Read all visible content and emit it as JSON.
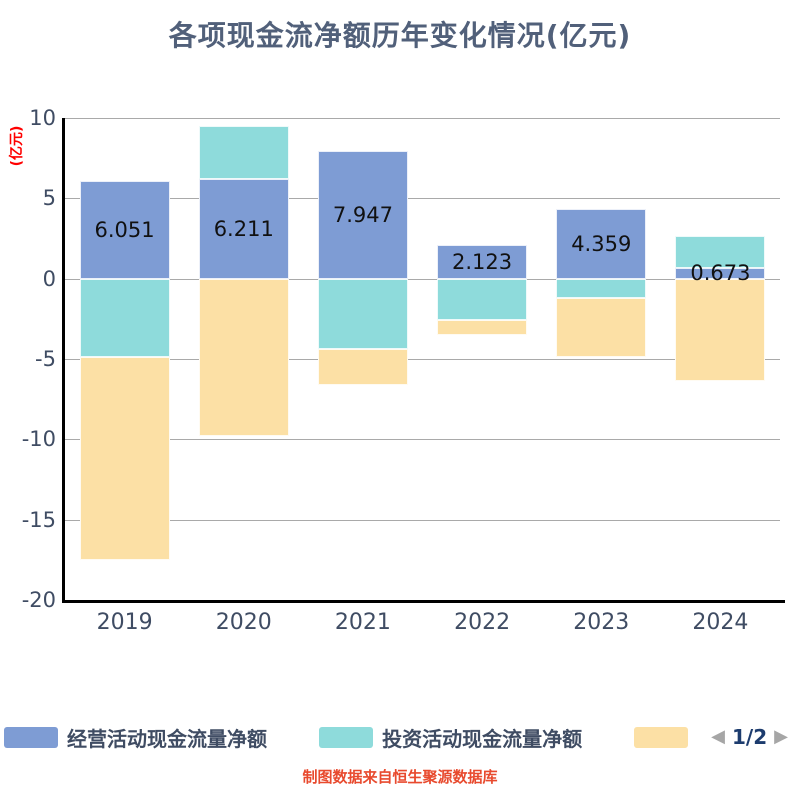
{
  "title": "各项现金流净额历年变化情况(亿元)",
  "y_axis_title": "(亿元)",
  "footer_note": "制图数据来自恒生聚源数据库",
  "legend": {
    "items": [
      {
        "label": "经营活动现金流量净额",
        "color": "#7E9CD4"
      },
      {
        "label": "投资活动现金流量净额",
        "color": "#8EDBDB"
      },
      {
        "label": "",
        "color": "#FCE0A5"
      }
    ],
    "pager": {
      "prev_icon": "◀",
      "page_indicator": "1/2",
      "next_icon": "▶"
    }
  },
  "chart_data": {
    "type": "bar",
    "stacked": true,
    "title": "各项现金流净额历年变化情况(亿元)",
    "ylabel": "(亿元)",
    "ylim": [
      -20,
      10
    ],
    "yticks": [
      10,
      5,
      0,
      -5,
      -10,
      -15,
      -20
    ],
    "grid": true,
    "legend_position": "bottom",
    "categories": [
      "2019",
      "2020",
      "2021",
      "2022",
      "2023",
      "2024"
    ],
    "series": [
      {
        "name": "经营活动现金流量净额",
        "color": "#7E9CD4",
        "values": [
          6.051,
          6.211,
          7.947,
          2.123,
          4.359,
          0.673
        ]
      },
      {
        "name": "投资活动现金流量净额",
        "color": "#8EDBDB",
        "values": [
          -4.9,
          3.3,
          -4.4,
          -2.6,
          -1.2,
          2.0
        ]
      },
      {
        "name": "",
        "color": "#FCE0A5",
        "values": [
          -12.6,
          -9.8,
          -2.2,
          -0.9,
          -3.7,
          -6.4
        ]
      }
    ],
    "bar_labels": [
      "6.051",
      "6.211",
      "7.947",
      "2.123",
      "4.359",
      "0.673"
    ]
  }
}
